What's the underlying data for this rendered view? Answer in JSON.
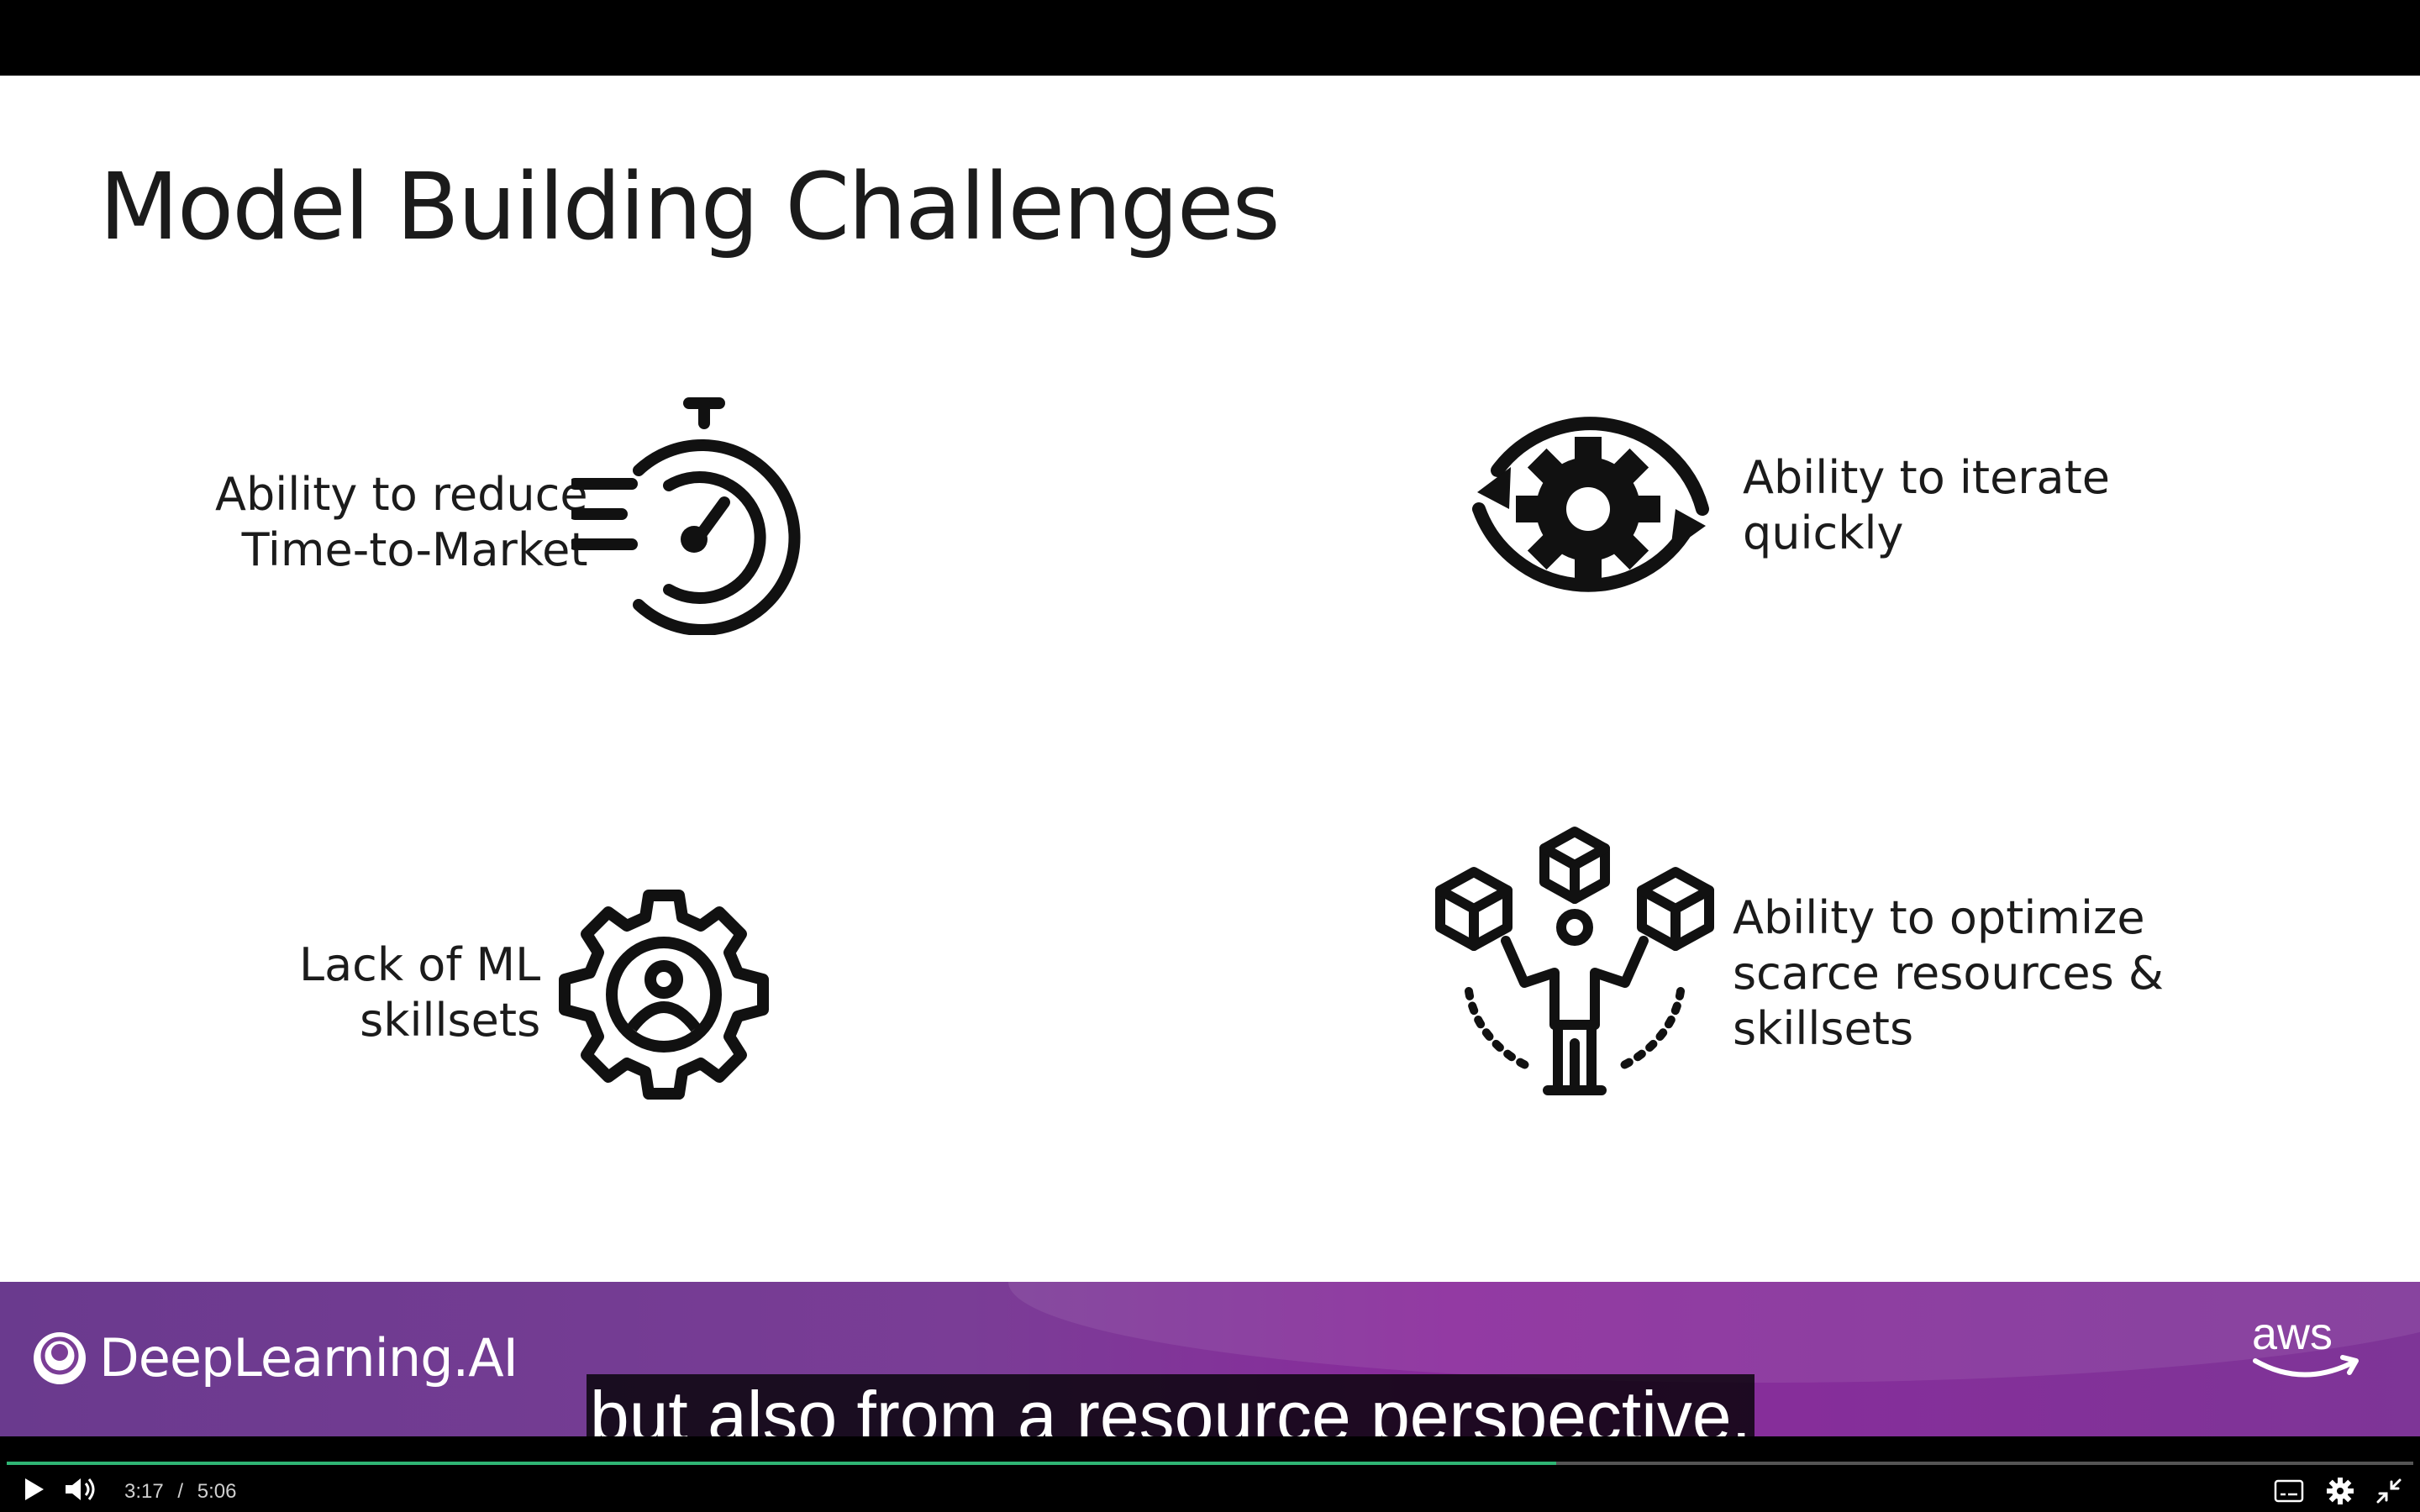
{
  "slide": {
    "title": "Model Building Challenges",
    "items": [
      {
        "id": "time-to-market",
        "lines": [
          "Ability to reduce",
          "Time-to-Market"
        ],
        "icon": "stopwatch-icon"
      },
      {
        "id": "iterate",
        "lines": [
          "Ability to iterate",
          "quickly"
        ],
        "icon": "gear-cycle-icon"
      },
      {
        "id": "skillsets",
        "lines": [
          "Lack of ML",
          "skillsets"
        ],
        "icon": "gear-person-icon"
      },
      {
        "id": "optimize",
        "lines": [
          "Ability to optimize",
          "scarce resources &",
          "skillsets"
        ],
        "icon": "person-boxes-icon"
      }
    ]
  },
  "footer": {
    "brand": "DeepLearning.AI",
    "partner_logo": "aws"
  },
  "caption": "but also from a resource perspective.",
  "player": {
    "current_time": "3:17",
    "separator": "/",
    "duration": "5:06",
    "progress": 0.644,
    "colors": {
      "progress": "#2fb574",
      "footer": "#7a3d96"
    }
  }
}
